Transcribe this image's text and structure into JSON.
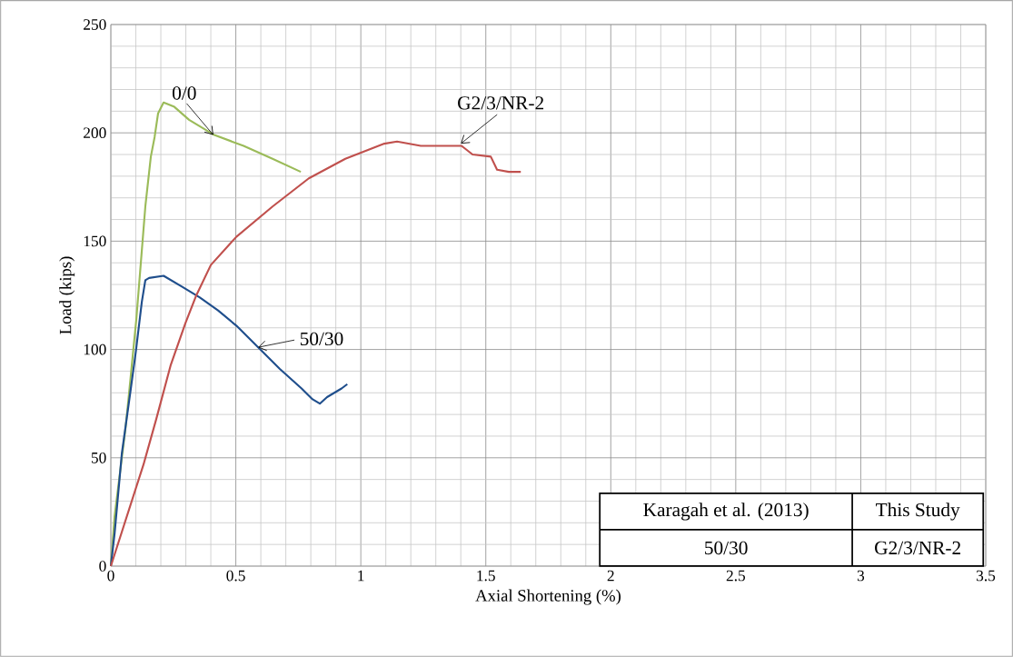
{
  "chart_data": {
    "type": "line",
    "xlabel": "Axial Shortening (%)",
    "ylabel": "Load (kips)",
    "xlim": [
      0,
      3.5
    ],
    "xticks": [
      0,
      0.5,
      1,
      1.5,
      2,
      2.5,
      3,
      3.5
    ],
    "ylim": [
      0,
      250
    ],
    "yticks": [
      0,
      50,
      100,
      150,
      200,
      250
    ],
    "grid": true,
    "marker": "none",
    "line_style": "solid",
    "series": [
      {
        "color": "#9bbb59",
        "x": [
          0,
          0.015,
          0.058,
          0.073,
          0.102,
          0.138,
          0.16,
          0.175,
          0.189,
          0.211,
          0.254,
          0.313,
          0.414,
          0.531,
          0.647,
          0.76
        ],
        "values": [
          0,
          23,
          63,
          80,
          114,
          166,
          189,
          198,
          209,
          214,
          212,
          206,
          199,
          194,
          188,
          182
        ]
      },
      {
        "color": "#1f4e8c",
        "x": [
          0,
          0.015,
          0.044,
          0.08,
          0.1,
          0.124,
          0.138,
          0.153,
          0.211,
          0.284,
          0.356,
          0.429,
          0.502,
          0.589,
          0.676,
          0.763,
          0.807,
          0.836,
          0.865,
          0.923,
          0.946
        ],
        "values": [
          0,
          15,
          52,
          82,
          99,
          122,
          132,
          133,
          134,
          129,
          124,
          118,
          111,
          101,
          91,
          82,
          77,
          75,
          78,
          82,
          84
        ]
      },
      {
        "color": "#c0504d",
        "x": [
          0,
          0.131,
          0.182,
          0.24,
          0.298,
          0.342,
          0.4,
          0.502,
          0.647,
          0.792,
          0.938,
          1.094,
          1.145,
          1.24,
          1.403,
          1.447,
          1.52,
          1.545,
          1.592,
          1.64
        ],
        "values": [
          0,
          47,
          68,
          93,
          112,
          125,
          139,
          152,
          166,
          179,
          188,
          195,
          196,
          194,
          194,
          190,
          189,
          183,
          182,
          182
        ]
      }
    ],
    "annotations": [
      {
        "text": "0/0",
        "x": 0.41,
        "y": 199
      },
      {
        "text": "50/30",
        "x": 0.589,
        "y": 101
      },
      {
        "text": "G2/3/NR-2",
        "x": 1.4,
        "y": 195
      },
      "Karagah et al. (2013)",
      "This Study",
      "50/30",
      "G2/3/NR-2"
    ]
  }
}
